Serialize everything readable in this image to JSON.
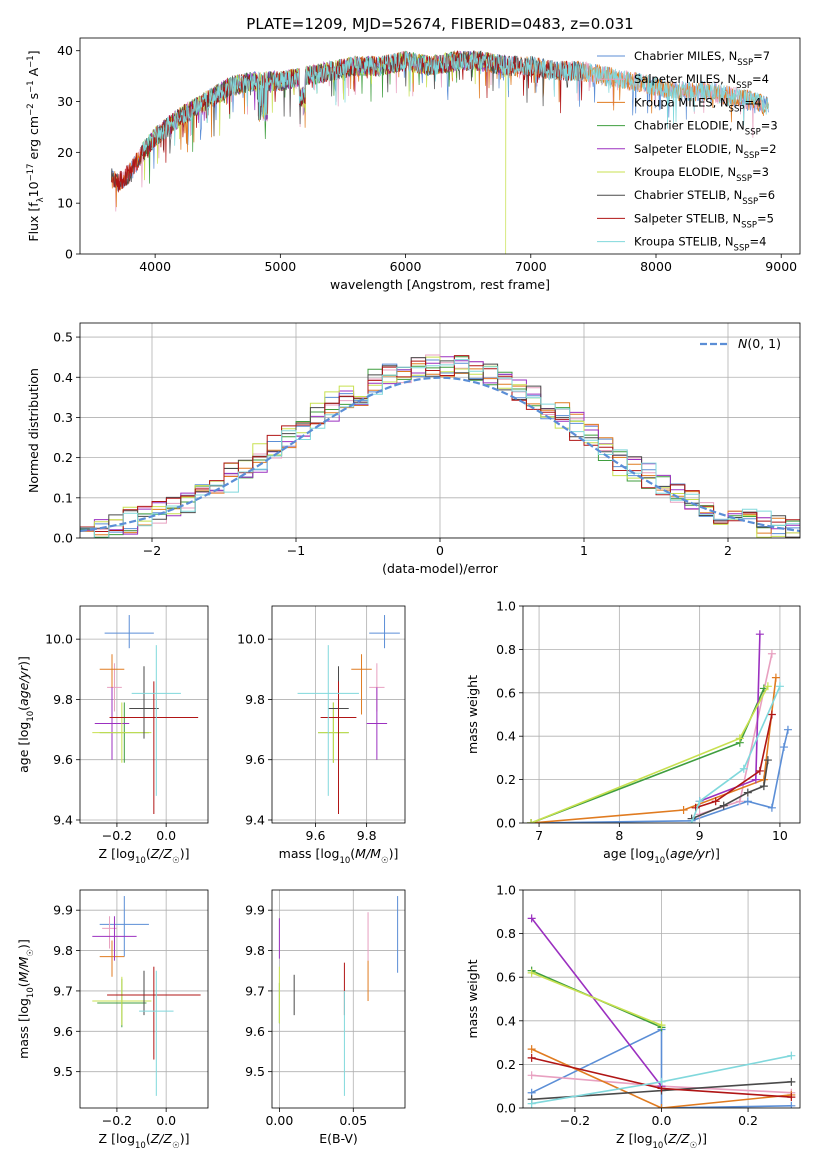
{
  "figure_title": "PLATE=1209, MJD=52674, FIBERID=0483, z=0.031",
  "colors": {
    "Chabrier MILES": "#5b8ed6",
    "Salpeter MILES": "#e8a0c0",
    "Kroupa MILES": "#e07b20",
    "Chabrier ELODIE": "#3f9e3f",
    "Salpeter ELODIE": "#9b30c0",
    "Kroupa ELODIE": "#c8e050",
    "Chabrier STELIB": "#4a4a4a",
    "Salpeter STELIB": "#b01515",
    "Kroupa STELIB": "#80d8dc",
    "normal": "#5b8ed6"
  },
  "chart_data": [
    {
      "id": "spectrum",
      "type": "line",
      "xlabel": "wavelength [Angstrom, rest frame]",
      "ylabel": "Flux [f_λ 10^-17 erg cm^-2 s^-1 A^-1]",
      "xlim": [
        3400,
        9150
      ],
      "ylim": [
        0,
        42.5
      ],
      "xticks": [
        4000,
        5000,
        6000,
        7000,
        8000,
        9000
      ],
      "yticks": [
        0,
        10,
        20,
        30,
        40
      ],
      "grid": false,
      "legend_position": "top-right",
      "continuum": {
        "x": [
          3650,
          3700,
          3800,
          3900,
          4000,
          4100,
          4200,
          4400,
          4600,
          4800,
          5000,
          5200,
          5400,
          5600,
          5800,
          6000,
          6200,
          6400,
          6600,
          6800,
          7000,
          7200,
          7400,
          7600,
          7800,
          8000,
          8200,
          8400,
          8600,
          8800,
          8900
        ],
        "y": [
          15,
          14,
          16,
          20,
          23,
          25,
          27,
          30,
          33,
          34,
          34,
          35,
          36,
          37,
          37,
          38,
          37,
          38,
          38,
          37,
          37,
          36,
          36,
          35,
          34,
          33,
          32,
          32,
          31,
          30,
          29
        ]
      },
      "series": [
        {
          "name": "Chabrier MILES",
          "nssp": "7",
          "start": 3650,
          "end": 8900,
          "drop": null
        },
        {
          "name": "Salpeter MILES",
          "nssp": "4",
          "start": 3650,
          "end": 8900,
          "drop": null
        },
        {
          "name": "Kroupa MILES",
          "nssp": "4",
          "start": 3650,
          "end": 8900,
          "drop": null
        },
        {
          "name": "Chabrier ELODIE",
          "nssp": "3",
          "start": 3900,
          "end": 6800,
          "drop": null
        },
        {
          "name": "Salpeter ELODIE",
          "nssp": "2",
          "start": 3900,
          "end": 6800,
          "drop": null
        },
        {
          "name": "Kroupa ELODIE",
          "nssp": "3",
          "start": 3900,
          "end": 6800,
          "drop": 6800
        },
        {
          "name": "Chabrier STELIB",
          "nssp": "6",
          "start": 3650,
          "end": 7420,
          "drop": null
        },
        {
          "name": "Salpeter STELIB",
          "nssp": "5",
          "start": 3650,
          "end": 7420,
          "drop": 7420
        },
        {
          "name": "Kroupa STELIB",
          "nssp": "4",
          "start": 3900,
          "end": 8900,
          "drop": 4130
        }
      ]
    },
    {
      "id": "residual_hist",
      "type": "histogram",
      "xlabel": "(data-model)/error",
      "ylabel": "Normed distribution",
      "xlim": [
        -2.5,
        2.5
      ],
      "ylim": [
        0,
        0.535
      ],
      "xticks": [
        -2,
        -1,
        0,
        1,
        2
      ],
      "yticks": [
        0.0,
        0.1,
        0.2,
        0.3,
        0.4,
        0.5
      ],
      "grid": true,
      "legend_position": "top-right",
      "normal_label": "N(0, 1)",
      "bin_width": 0.1,
      "series": [
        {
          "name": "Chabrier MILES",
          "shift": 0.0
        },
        {
          "name": "Salpeter MILES",
          "shift": 0.03
        },
        {
          "name": "Kroupa MILES",
          "shift": 0.06
        },
        {
          "name": "Chabrier ELODIE",
          "shift": -0.02
        },
        {
          "name": "Salpeter ELODIE",
          "shift": 0.05
        },
        {
          "name": "Kroupa ELODIE",
          "shift": -0.05
        },
        {
          "name": "Chabrier STELIB",
          "shift": 0.02
        },
        {
          "name": "Salpeter STELIB",
          "shift": -0.03
        },
        {
          "name": "Kroupa STELIB",
          "shift": 0.04
        }
      ]
    },
    {
      "id": "z_age",
      "type": "errorbar",
      "xlabel": "Z [log10(Z/Z☉)]",
      "ylabel": "age [log10(age/yr)]",
      "xlim": [
        -0.35,
        0.17
      ],
      "ylim": [
        9.39,
        10.11
      ],
      "xticks": [
        -0.2,
        0.0
      ],
      "yticks": [
        9.4,
        9.6,
        9.8,
        10.0
      ],
      "grid": true,
      "points": [
        {
          "name": "Chabrier MILES",
          "x": -0.15,
          "xerr": 0.1,
          "y": 10.02,
          "yerr_lo": 0.05,
          "yerr_hi": 0.06
        },
        {
          "name": "Salpeter MILES",
          "x": -0.21,
          "xerr": 0.03,
          "y": 9.84,
          "yerr_lo": 0.08,
          "yerr_hi": 0.08
        },
        {
          "name": "Kroupa MILES",
          "x": -0.22,
          "xerr": 0.05,
          "y": 9.9,
          "yerr_lo": 0.15,
          "yerr_hi": 0.05
        },
        {
          "name": "Chabrier ELODIE",
          "x": -0.17,
          "xerr": 0.1,
          "y": 9.69,
          "yerr_lo": 0.1,
          "yerr_hi": 0.1
        },
        {
          "name": "Salpeter ELODIE",
          "x": -0.22,
          "xerr": 0.07,
          "y": 9.72,
          "yerr_lo": 0.12,
          "yerr_hi": 0.12
        },
        {
          "name": "Kroupa ELODIE",
          "x": -0.18,
          "xerr": 0.12,
          "y": 9.69,
          "yerr_lo": 0.1,
          "yerr_hi": 0.1
        },
        {
          "name": "Chabrier STELIB",
          "x": -0.09,
          "xerr": 0.06,
          "y": 9.77,
          "yerr_lo": 0.1,
          "yerr_hi": 0.14
        },
        {
          "name": "Salpeter STELIB",
          "x": -0.05,
          "xerr": 0.18,
          "y": 9.74,
          "yerr_lo": 0.32,
          "yerr_hi": 0.12
        },
        {
          "name": "Kroupa STELIB",
          "x": -0.04,
          "xerr": 0.1,
          "y": 9.82,
          "yerr_lo": 0.34,
          "yerr_hi": 0.16
        }
      ]
    },
    {
      "id": "mass_age",
      "type": "errorbar",
      "xlabel": "mass [log10(M/M☉)]",
      "ylabel": "",
      "xlim": [
        9.43,
        9.95
      ],
      "ylim": [
        9.39,
        10.11
      ],
      "xticks": [
        9.6,
        9.8
      ],
      "yticks": [
        9.4,
        9.6,
        9.8,
        10.0
      ],
      "grid": true,
      "points": [
        {
          "name": "Chabrier MILES",
          "x": 9.87,
          "xerr": 0.06,
          "y": 10.02,
          "yerr_lo": 0.05,
          "yerr_hi": 0.06
        },
        {
          "name": "Salpeter MILES",
          "x": 9.84,
          "xerr": 0.03,
          "y": 9.84,
          "yerr_lo": 0.08,
          "yerr_hi": 0.08
        },
        {
          "name": "Kroupa MILES",
          "x": 9.78,
          "xerr": 0.04,
          "y": 9.9,
          "yerr_lo": 0.15,
          "yerr_hi": 0.05
        },
        {
          "name": "Chabrier ELODIE",
          "x": 9.67,
          "xerr": 0.06,
          "y": 9.69,
          "yerr_lo": 0.1,
          "yerr_hi": 0.1
        },
        {
          "name": "Salpeter ELODIE",
          "x": 9.84,
          "xerr": 0.04,
          "y": 9.72,
          "yerr_lo": 0.12,
          "yerr_hi": 0.12
        },
        {
          "name": "Kroupa ELODIE",
          "x": 9.67,
          "xerr": 0.06,
          "y": 9.69,
          "yerr_lo": 0.1,
          "yerr_hi": 0.1
        },
        {
          "name": "Chabrier STELIB",
          "x": 9.69,
          "xerr": 0.04,
          "y": 9.77,
          "yerr_lo": 0.1,
          "yerr_hi": 0.14
        },
        {
          "name": "Salpeter STELIB",
          "x": 9.69,
          "xerr": 0.07,
          "y": 9.74,
          "yerr_lo": 0.32,
          "yerr_hi": 0.12
        },
        {
          "name": "Kroupa STELIB",
          "x": 9.65,
          "xerr": 0.12,
          "y": 9.82,
          "yerr_lo": 0.34,
          "yerr_hi": 0.16
        }
      ]
    },
    {
      "id": "age_weight",
      "type": "line",
      "xlabel": "age [log10(age/yr)]",
      "ylabel": "mass weight",
      "xlim": [
        6.8,
        10.25
      ],
      "ylim": [
        0,
        1.0
      ],
      "xticks": [
        7,
        8,
        9,
        10
      ],
      "yticks": [
        0.0,
        0.2,
        0.4,
        0.6,
        0.8,
        1.0
      ],
      "grid": true,
      "series": [
        {
          "name": "Chabrier MILES",
          "points": [
            [
              6.9,
              0.0
            ],
            [
              8.9,
              0.01
            ],
            [
              9.6,
              0.1
            ],
            [
              9.9,
              0.07
            ],
            [
              10.05,
              0.35
            ],
            [
              10.1,
              0.43
            ]
          ]
        },
        {
          "name": "Salpeter MILES",
          "points": [
            [
              9.0,
              0.04
            ],
            [
              9.5,
              0.1
            ],
            [
              9.9,
              0.78
            ]
          ]
        },
        {
          "name": "Kroupa MILES",
          "points": [
            [
              6.9,
              0.0
            ],
            [
              8.8,
              0.06
            ],
            [
              9.8,
              0.2
            ],
            [
              9.95,
              0.67
            ]
          ]
        },
        {
          "name": "Chabrier ELODIE",
          "points": [
            [
              6.9,
              0.0
            ],
            [
              9.5,
              0.37
            ],
            [
              9.8,
              0.62
            ]
          ]
        },
        {
          "name": "Salpeter ELODIE",
          "points": [
            [
              9.0,
              0.1
            ],
            [
              9.7,
              0.2
            ],
            [
              9.75,
              0.87
            ]
          ]
        },
        {
          "name": "Kroupa ELODIE",
          "points": [
            [
              6.9,
              0.0
            ],
            [
              9.5,
              0.39
            ],
            [
              9.85,
              0.63
            ]
          ]
        },
        {
          "name": "Chabrier STELIB",
          "points": [
            [
              8.9,
              0.02
            ],
            [
              9.3,
              0.08
            ],
            [
              9.6,
              0.14
            ],
            [
              9.8,
              0.17
            ],
            [
              9.85,
              0.29
            ]
          ]
        },
        {
          "name": "Salpeter STELIB",
          "points": [
            [
              8.95,
              0.07
            ],
            [
              9.2,
              0.1
            ],
            [
              9.75,
              0.24
            ],
            [
              9.9,
              0.5
            ]
          ]
        },
        {
          "name": "Kroupa STELIB",
          "points": [
            [
              8.9,
              0.0
            ],
            [
              9.0,
              0.1
            ],
            [
              9.55,
              0.25
            ],
            [
              10.0,
              0.63
            ]
          ]
        }
      ]
    },
    {
      "id": "z_mass",
      "type": "errorbar",
      "xlabel": "Z [log10(Z/Z☉)]",
      "ylabel": "mass [log10(M/M☉)]",
      "xlim": [
        -0.35,
        0.17
      ],
      "ylim": [
        9.41,
        9.95
      ],
      "xticks": [
        -0.2,
        0.0
      ],
      "yticks": [
        9.5,
        9.6,
        9.7,
        9.8,
        9.9
      ],
      "grid": true,
      "points": [
        {
          "name": "Chabrier MILES",
          "x": -0.17,
          "xerr": 0.1,
          "y": 9.865,
          "yerr_lo": 0.08,
          "yerr_hi": 0.07
        },
        {
          "name": "Salpeter MILES",
          "x": -0.23,
          "xerr": 0.03,
          "y": 9.855,
          "yerr_lo": 0.05,
          "yerr_hi": 0.03
        },
        {
          "name": "Kroupa MILES",
          "x": -0.22,
          "xerr": 0.05,
          "y": 9.785,
          "yerr_lo": 0.05,
          "yerr_hi": 0.04
        },
        {
          "name": "Chabrier ELODIE",
          "x": -0.18,
          "xerr": 0.1,
          "y": 9.67,
          "yerr_lo": 0.06,
          "yerr_hi": 0.06
        },
        {
          "name": "Salpeter ELODIE",
          "x": -0.21,
          "xerr": 0.09,
          "y": 9.835,
          "yerr_lo": 0.06,
          "yerr_hi": 0.05
        },
        {
          "name": "Kroupa ELODIE",
          "x": -0.18,
          "xerr": 0.12,
          "y": 9.675,
          "yerr_lo": 0.06,
          "yerr_hi": 0.06
        },
        {
          "name": "Chabrier STELIB",
          "x": -0.09,
          "xerr": 0.05,
          "y": 9.69,
          "yerr_lo": 0.05,
          "yerr_hi": 0.06
        },
        {
          "name": "Salpeter STELIB",
          "x": -0.05,
          "xerr": 0.19,
          "y": 9.69,
          "yerr_lo": 0.16,
          "yerr_hi": 0.07
        },
        {
          "name": "Kroupa STELIB",
          "x": -0.04,
          "xerr": 0.07,
          "y": 9.65,
          "yerr_lo": 0.21,
          "yerr_hi": 0.1
        }
      ]
    },
    {
      "id": "ebv_mass",
      "type": "errorbar",
      "xlabel": "E(B-V)",
      "ylabel": "",
      "xlim": [
        -0.005,
        0.085
      ],
      "ylim": [
        9.41,
        9.95
      ],
      "xticks": [
        0.0,
        0.05
      ],
      "xtick_labels": [
        "0.00",
        "0.05"
      ],
      "yticks": [
        9.5,
        9.6,
        9.7,
        9.8,
        9.9
      ],
      "grid": true,
      "points": [
        {
          "name": "Chabrier MILES",
          "x": 0.08,
          "xerr": 0,
          "y": 9.845,
          "yerr_lo": 0.1,
          "yerr_hi": 0.09
        },
        {
          "name": "Salpeter MILES",
          "x": 0.06,
          "xerr": 0,
          "y": 9.835,
          "yerr_lo": 0.06,
          "yerr_hi": 0.06
        },
        {
          "name": "Kroupa MILES",
          "x": 0.06,
          "xerr": 0,
          "y": 9.725,
          "yerr_lo": 0.05,
          "yerr_hi": 0.05
        },
        {
          "name": "Chabrier ELODIE",
          "x": 0.0,
          "xerr": 0,
          "y": 9.67,
          "yerr_lo": 0.05,
          "yerr_hi": 0.05
        },
        {
          "name": "Salpeter ELODIE",
          "x": 0.0,
          "xerr": 0,
          "y": 9.83,
          "yerr_lo": 0.05,
          "yerr_hi": 0.05
        },
        {
          "name": "Kroupa ELODIE",
          "x": 0.0,
          "xerr": 0,
          "y": 9.69,
          "yerr_lo": 0.07,
          "yerr_hi": 0.07
        },
        {
          "name": "Chabrier STELIB",
          "x": 0.01,
          "xerr": 0,
          "y": 9.69,
          "yerr_lo": 0.05,
          "yerr_hi": 0.05
        },
        {
          "name": "Salpeter STELIB",
          "x": 0.044,
          "xerr": 0,
          "y": 9.71,
          "yerr_lo": 0.07,
          "yerr_hi": 0.06
        },
        {
          "name": "Kroupa STELIB",
          "x": 0.044,
          "xerr": 0,
          "y": 9.6,
          "yerr_lo": 0.16,
          "yerr_hi": 0.1
        }
      ]
    },
    {
      "id": "z_weight",
      "type": "line",
      "xlabel": "Z [log10(Z/Z☉)]",
      "ylabel": "mass weight",
      "xlim": [
        -0.32,
        0.32
      ],
      "ylim": [
        0,
        1.0
      ],
      "xticks": [
        -0.2,
        0.0,
        0.2
      ],
      "yticks": [
        0.0,
        0.2,
        0.4,
        0.6,
        0.8,
        1.0
      ],
      "grid": true,
      "series": [
        {
          "name": "Chabrier MILES",
          "points": [
            [
              -0.3,
              0.07
            ],
            [
              0.0,
              0.36
            ],
            [
              0.0,
              0.0
            ],
            [
              0.3,
              0.01
            ]
          ]
        },
        {
          "name": "Salpeter MILES",
          "points": [
            [
              -0.3,
              0.15
            ],
            [
              0.0,
              0.1
            ],
            [
              0.3,
              0.07
            ]
          ]
        },
        {
          "name": "Kroupa MILES",
          "points": [
            [
              -0.3,
              0.27
            ],
            [
              0.0,
              0.0
            ],
            [
              0.3,
              0.06
            ]
          ]
        },
        {
          "name": "Chabrier ELODIE",
          "points": [
            [
              -0.3,
              0.63
            ],
            [
              0.0,
              0.37
            ]
          ]
        },
        {
          "name": "Salpeter ELODIE",
          "points": [
            [
              -0.3,
              0.87
            ],
            [
              0.0,
              0.1
            ]
          ]
        },
        {
          "name": "Kroupa ELODIE",
          "points": [
            [
              -0.3,
              0.62
            ],
            [
              0.0,
              0.38
            ]
          ]
        },
        {
          "name": "Chabrier STELIB",
          "points": [
            [
              -0.3,
              0.04
            ],
            [
              0.0,
              0.08
            ],
            [
              0.3,
              0.12
            ]
          ]
        },
        {
          "name": "Salpeter STELIB",
          "points": [
            [
              -0.3,
              0.23
            ],
            [
              0.0,
              0.09
            ],
            [
              0.3,
              0.05
            ]
          ]
        },
        {
          "name": "Kroupa STELIB",
          "points": [
            [
              -0.3,
              0.02
            ],
            [
              0.0,
              0.12
            ],
            [
              0.3,
              0.24
            ]
          ]
        }
      ]
    }
  ]
}
